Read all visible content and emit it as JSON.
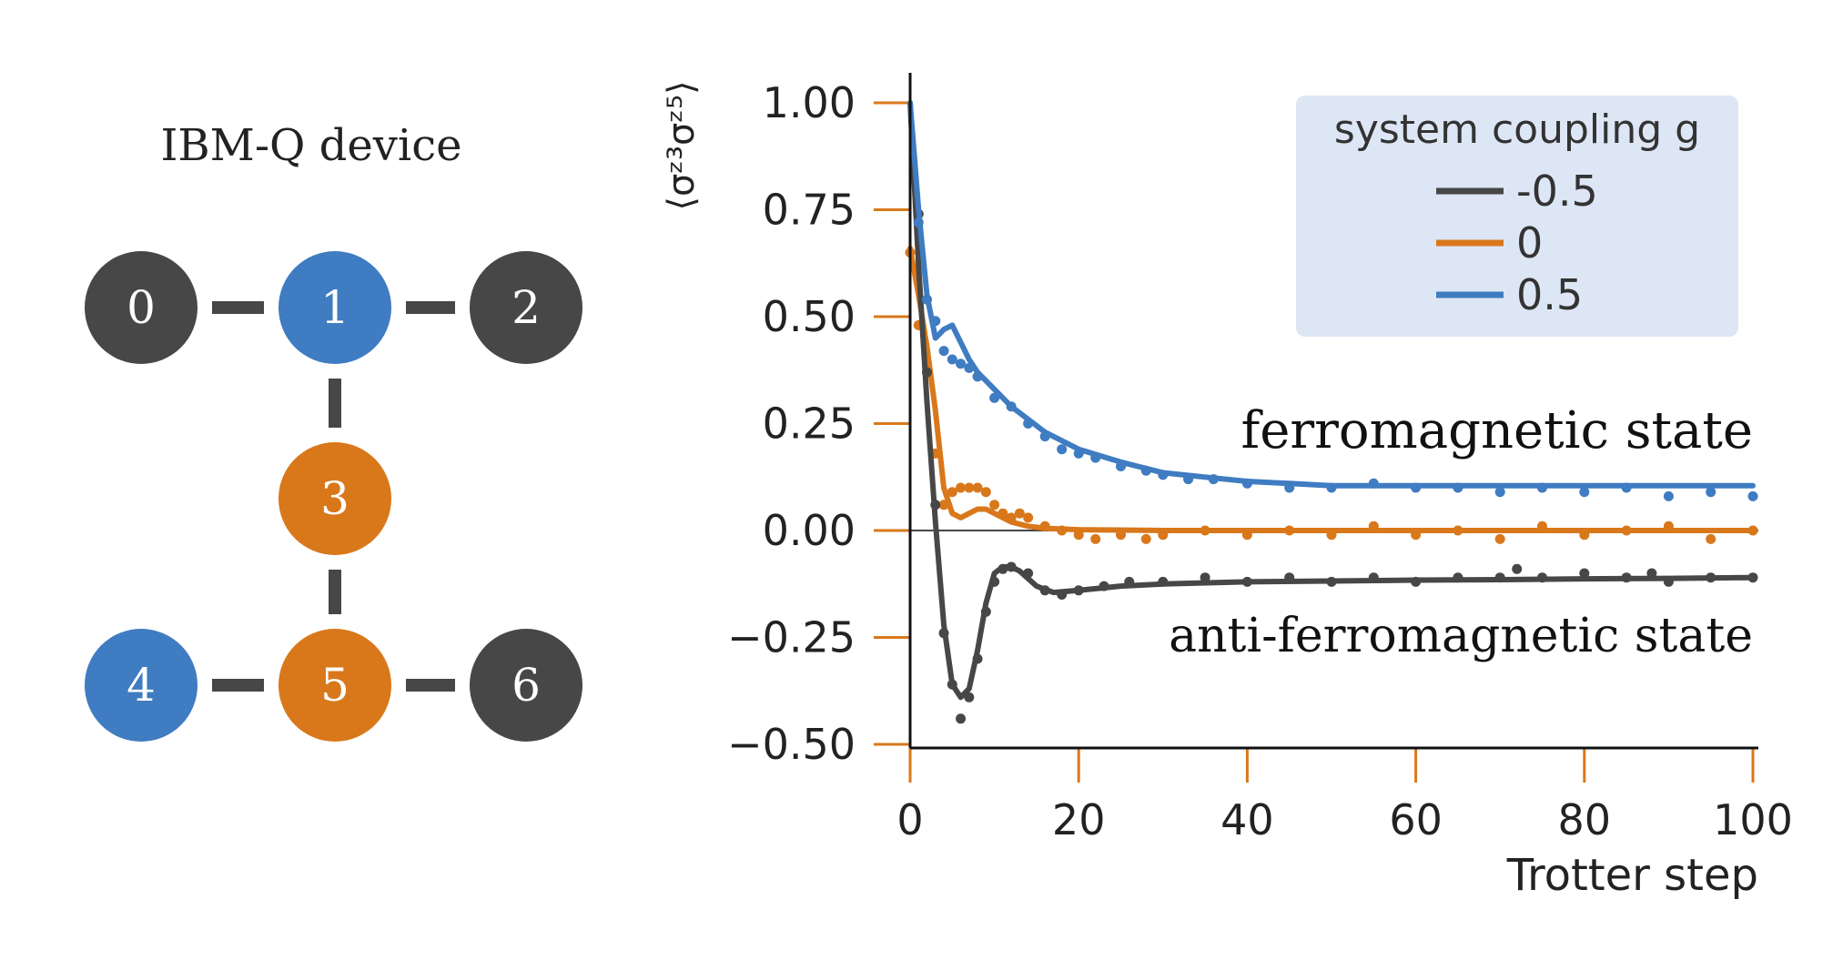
{
  "device": {
    "title": "IBM-Q device",
    "colors": {
      "dark": "#474747",
      "blue": "#3f7cc2",
      "orange": "#d9781b",
      "edge": "#474747"
    },
    "nodes": [
      {
        "label": "0",
        "role": "dark"
      },
      {
        "label": "1",
        "role": "blue"
      },
      {
        "label": "2",
        "role": "dark"
      },
      {
        "label": "3",
        "role": "orange"
      },
      {
        "label": "4",
        "role": "blue"
      },
      {
        "label": "5",
        "role": "orange"
      },
      {
        "label": "6",
        "role": "dark"
      }
    ],
    "edges": [
      [
        "0",
        "1"
      ],
      [
        "1",
        "2"
      ],
      [
        "1",
        "3"
      ],
      [
        "3",
        "5"
      ],
      [
        "4",
        "5"
      ],
      [
        "5",
        "6"
      ]
    ]
  },
  "chart_data": {
    "type": "line",
    "xlabel": "Trotter step",
    "ylabel": "⟨σᶻ³σᶻ⁵⟩",
    "xlim": [
      0,
      100
    ],
    "ylim": [
      -0.5,
      1.0
    ],
    "xticks": [
      0,
      20,
      40,
      60,
      80,
      100
    ],
    "xtick_labels": [
      "0",
      "20",
      "40",
      "60",
      "80",
      "100"
    ],
    "yticks": [
      -0.5,
      -0.25,
      0.0,
      0.25,
      0.5,
      0.75,
      1.0
    ],
    "ytick_labels": [
      "−0.50",
      "−0.25",
      "0.00",
      "0.25",
      "0.50",
      "0.75",
      "1.00"
    ],
    "tick_color": "#d9781b",
    "zero_line": true,
    "grid": false,
    "legend": {
      "title": "system coupling g",
      "placement": "top-right",
      "background": "#dde6f4"
    },
    "annotations": [
      {
        "text": "ferromagnetic state",
        "y": 0.24
      },
      {
        "text": "anti-ferromagnetic state",
        "y": -0.25
      }
    ],
    "series": [
      {
        "name": "-0.5",
        "color": "#474747",
        "line": {
          "x": [
            0,
            1,
            2,
            3,
            4,
            5,
            6,
            7,
            8,
            9,
            10,
            11,
            12,
            13,
            15,
            17,
            20,
            25,
            30,
            40,
            50,
            60,
            70,
            80,
            90,
            100
          ],
          "y": [
            1.0,
            0.62,
            0.3,
            0.02,
            -0.22,
            -0.36,
            -0.39,
            -0.37,
            -0.28,
            -0.17,
            -0.1,
            -0.085,
            -0.085,
            -0.095,
            -0.13,
            -0.145,
            -0.14,
            -0.13,
            -0.125,
            -0.12,
            -0.118,
            -0.116,
            -0.115,
            -0.113,
            -0.112,
            -0.11
          ]
        },
        "points": {
          "x": [
            1,
            2,
            3,
            4,
            5,
            6,
            7,
            8,
            9,
            10,
            11,
            12,
            14,
            16,
            18,
            20,
            23,
            26,
            30,
            35,
            40,
            45,
            50,
            55,
            60,
            65,
            70,
            72,
            75,
            80,
            85,
            88,
            90,
            95,
            100
          ],
          "y": [
            0.74,
            0.37,
            0.06,
            -0.24,
            -0.36,
            -0.44,
            -0.39,
            -0.3,
            -0.19,
            -0.12,
            -0.09,
            -0.085,
            -0.1,
            -0.14,
            -0.15,
            -0.14,
            -0.13,
            -0.12,
            -0.12,
            -0.11,
            -0.12,
            -0.11,
            -0.12,
            -0.11,
            -0.12,
            -0.11,
            -0.11,
            -0.09,
            -0.11,
            -0.1,
            -0.11,
            -0.1,
            -0.12,
            -0.11,
            -0.11
          ]
        }
      },
      {
        "name": "0",
        "color": "#d9781b",
        "line": {
          "x": [
            0,
            1,
            2,
            3,
            4,
            5,
            6,
            7,
            8,
            9,
            10,
            11,
            12,
            14,
            16,
            20,
            30,
            40,
            60,
            80,
            100
          ],
          "y": [
            0.66,
            0.55,
            0.43,
            0.28,
            0.1,
            0.04,
            0.03,
            0.04,
            0.05,
            0.05,
            0.04,
            0.03,
            0.02,
            0.01,
            0.005,
            0.002,
            0.0,
            0.0,
            0.0,
            0.0,
            0.0
          ]
        },
        "points": {
          "x": [
            0,
            1,
            2,
            3,
            4,
            5,
            6,
            7,
            8,
            9,
            10,
            11,
            12,
            13,
            14,
            16,
            18,
            20,
            22,
            25,
            28,
            30,
            35,
            40,
            45,
            50,
            55,
            60,
            65,
            70,
            75,
            80,
            85,
            90,
            95,
            100
          ],
          "y": [
            0.65,
            0.48,
            0.37,
            0.18,
            0.06,
            0.09,
            0.1,
            0.1,
            0.1,
            0.09,
            0.06,
            0.04,
            0.03,
            0.04,
            0.03,
            0.01,
            0.0,
            -0.01,
            -0.02,
            -0.01,
            -0.02,
            -0.01,
            0.0,
            -0.01,
            0.0,
            -0.01,
            0.01,
            -0.01,
            0.0,
            -0.02,
            0.01,
            -0.01,
            0.0,
            0.01,
            -0.02,
            0.0
          ]
        }
      },
      {
        "name": "0.5",
        "color": "#3f7cc2",
        "line": {
          "x": [
            0,
            1,
            2,
            3,
            4,
            5,
            6,
            7,
            8,
            10,
            12,
            14,
            16,
            18,
            20,
            25,
            30,
            35,
            40,
            45,
            50,
            60,
            70,
            80,
            90,
            100
          ],
          "y": [
            1.0,
            0.75,
            0.55,
            0.45,
            0.47,
            0.48,
            0.44,
            0.4,
            0.37,
            0.33,
            0.29,
            0.26,
            0.23,
            0.21,
            0.19,
            0.16,
            0.135,
            0.125,
            0.115,
            0.11,
            0.105,
            0.105,
            0.105,
            0.105,
            0.105,
            0.105
          ]
        },
        "points": {
          "x": [
            1,
            2,
            3,
            4,
            5,
            6,
            7,
            8,
            10,
            12,
            14,
            16,
            18,
            20,
            22,
            25,
            28,
            30,
            33,
            36,
            40,
            45,
            50,
            55,
            60,
            65,
            70,
            75,
            80,
            85,
            90,
            95,
            100
          ],
          "y": [
            0.72,
            0.54,
            0.49,
            0.42,
            0.4,
            0.39,
            0.38,
            0.36,
            0.31,
            0.29,
            0.25,
            0.22,
            0.19,
            0.18,
            0.17,
            0.15,
            0.14,
            0.13,
            0.12,
            0.12,
            0.11,
            0.1,
            0.1,
            0.11,
            0.1,
            0.1,
            0.09,
            0.1,
            0.09,
            0.1,
            0.08,
            0.09,
            0.08
          ]
        }
      }
    ]
  }
}
